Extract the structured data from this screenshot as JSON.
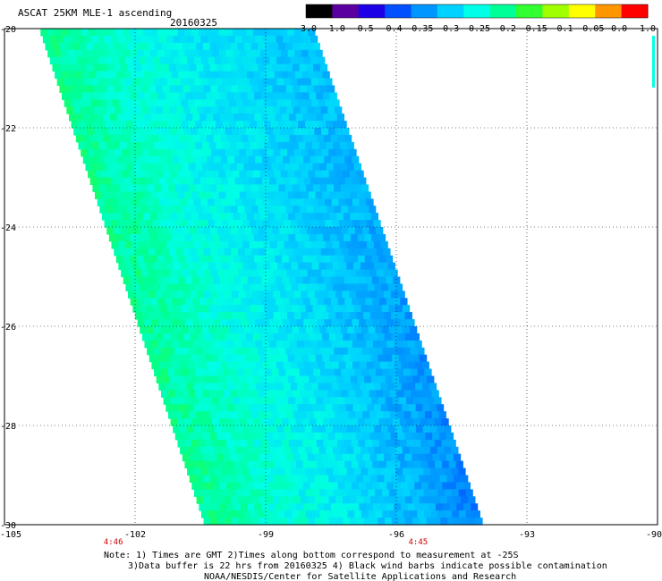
{
  "chart_data": {
    "type": "heatmap",
    "title": "ASCAT 25KM MLE-1 ascending",
    "date": "20160325",
    "x_ticks": [
      "-105",
      "-102",
      "-99",
      "-96",
      "-93",
      "-90"
    ],
    "y_ticks": [
      "-20",
      "-22",
      "-24",
      "-26",
      "-28",
      "-30"
    ],
    "xlim": [
      -105,
      -90
    ],
    "ylim": [
      -30,
      -20
    ],
    "grid": true,
    "time_labels": [
      {
        "text": "4:46",
        "lon": -102.5
      },
      {
        "text": "4:45",
        "lon": -95.5
      }
    ],
    "colorbar": {
      "labels": [
        "-3.0",
        "-1.0",
        "-0.5",
        "-0.4",
        "-0.35",
        "-0.3",
        "-0.25",
        "-0.2",
        "-0.15",
        "-0.1",
        "-0.05",
        "0.0",
        "1.0"
      ],
      "colors": [
        "#000000",
        "#5a00a0",
        "#1e00e6",
        "#0050ff",
        "#0096ff",
        "#00d2ff",
        "#00ffe6",
        "#00ff96",
        "#32ff32",
        "#a0ff00",
        "#ffff00",
        "#ff9600",
        "#ff0000"
      ]
    },
    "swath": {
      "north_edge": {
        "lat": -20,
        "lon_west": -104.2,
        "lon_east": -97.9
      },
      "south_edge": {
        "lat": -30,
        "lon_west": -100.4,
        "lon_east": -94.0
      },
      "dominant_values": {
        "west_band": -0.2,
        "center": -0.27,
        "east_band": -0.37
      }
    }
  },
  "notes": [
    "Note: 1) Times are GMT 2)Times along bottom correspond to measurement at -25S",
    "3)Data buffer is 22 hrs from 20160325 4) Black wind barbs indicate possible contamination",
    "NOAA/NESDIS/Center for Satellite Applications and Research"
  ]
}
